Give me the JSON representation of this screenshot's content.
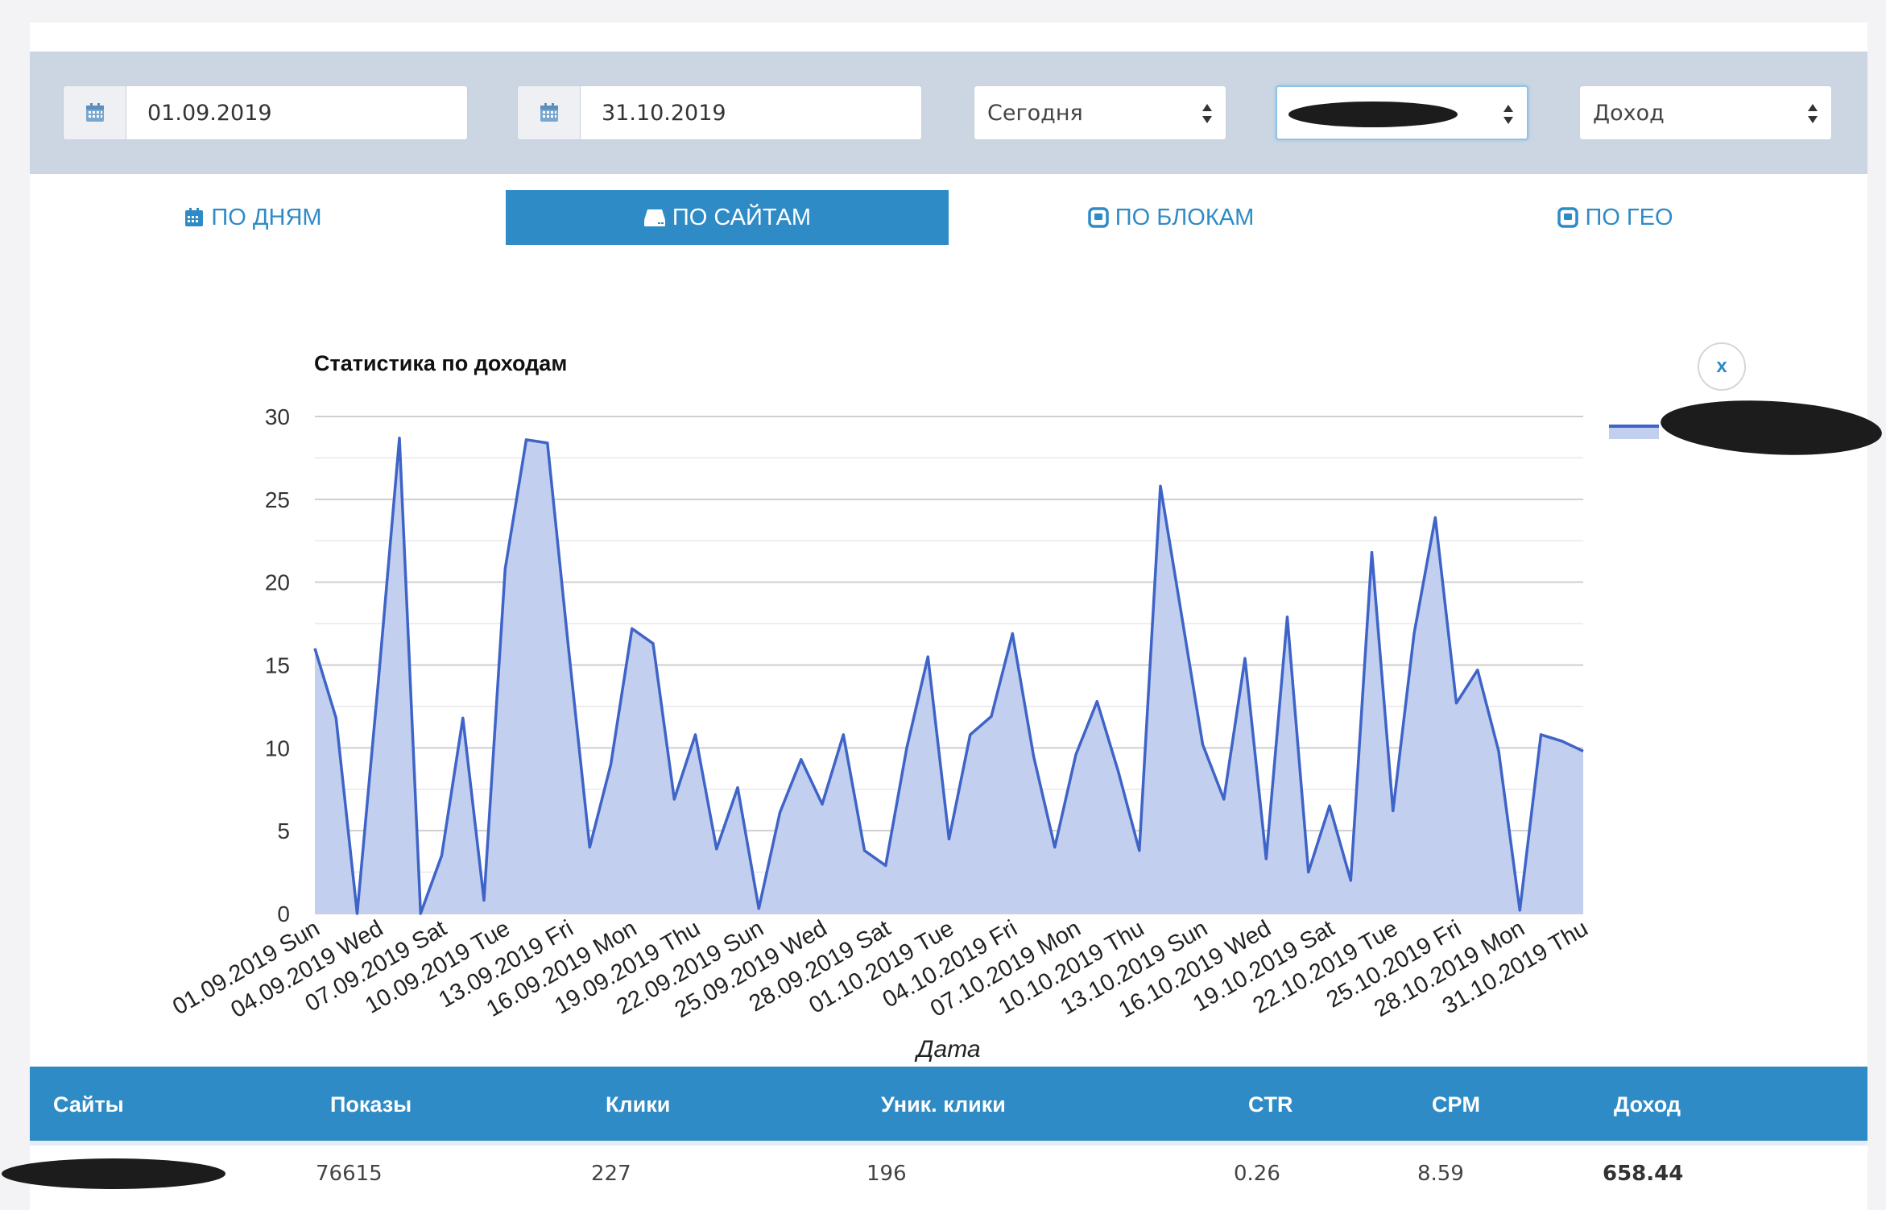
{
  "filters": {
    "date_from": "01.09.2019",
    "date_to": "31.10.2019",
    "period": "Сегодня",
    "site": "",
    "metric": "Доход"
  },
  "tabs": [
    {
      "label": "ПО ДНЯМ",
      "icon": "calendar-icon",
      "active": false
    },
    {
      "label": "ПО САЙТАМ",
      "icon": "server-icon",
      "active": true
    },
    {
      "label": "ПО БЛОКАМ",
      "icon": "block-icon",
      "active": false
    },
    {
      "label": "ПО ГЕО",
      "icon": "block-icon",
      "active": false
    }
  ],
  "chart": {
    "close_label": "x"
  },
  "chart_data": {
    "type": "area",
    "title": "Статистика по доходам",
    "xlabel": "Дата",
    "ylabel": "",
    "ylim": [
      0,
      30
    ],
    "yticks": [
      "0",
      "5",
      "10",
      "15",
      "20",
      "25",
      "30"
    ],
    "x_ticklabels": [
      "01.09.2019 Sun",
      "04.09.2019 Wed",
      "07.09.2019 Sat",
      "10.09.2019 Tue",
      "13.09.2019 Fri",
      "16.09.2019 Mon",
      "19.09.2019 Thu",
      "22.09.2019 Sun",
      "25.09.2019 Wed",
      "28.09.2019 Sat",
      "01.10.2019 Tue",
      "04.10.2019 Fri",
      "07.10.2019 Mon",
      "10.10.2019 Thu",
      "13.10.2019 Sun",
      "16.10.2019 Wed",
      "19.10.2019 Sat",
      "22.10.2019 Tue",
      "25.10.2019 Fri",
      "28.10.2019 Mon",
      "31.10.2019 Thu"
    ],
    "tick_every": 3,
    "legend_position": "right",
    "grid": true,
    "colors": {
      "line": "#3f64c8",
      "fill": "#c3cfee"
    },
    "series": [
      {
        "values": [
          16,
          11.8,
          0,
          14,
          28.7,
          0,
          3.5,
          11.8,
          0.8,
          20.8,
          28.6,
          28.4,
          16,
          4,
          9,
          17.2,
          16.3,
          6.9,
          10.8,
          3.9,
          7.6,
          0.3,
          6.1,
          9.3,
          6.6,
          10.8,
          3.8,
          2.9,
          10,
          15.5,
          4.5,
          10.8,
          11.9,
          16.9,
          9.5,
          4,
          9.6,
          12.8,
          8.6,
          3.8,
          25.8,
          18,
          10.2,
          6.9,
          15.4,
          3.3,
          17.9,
          2.5,
          6.5,
          2,
          21.8,
          6.2,
          16.9,
          23.9,
          12.7,
          14.7,
          9.8,
          0.2,
          10.8,
          10.4,
          9.8
        ]
      }
    ]
  },
  "table": {
    "headers": [
      "Сайты",
      "Показы",
      "Клики",
      "Уник. клики",
      "CTR",
      "CPM",
      "Доход"
    ],
    "rows": [
      {
        "site": "",
        "impressions": "76615",
        "clicks": "227",
        "unique_clicks": "196",
        "ctr": "0.26",
        "cpm": "8.59",
        "revenue": "658.44"
      }
    ]
  }
}
